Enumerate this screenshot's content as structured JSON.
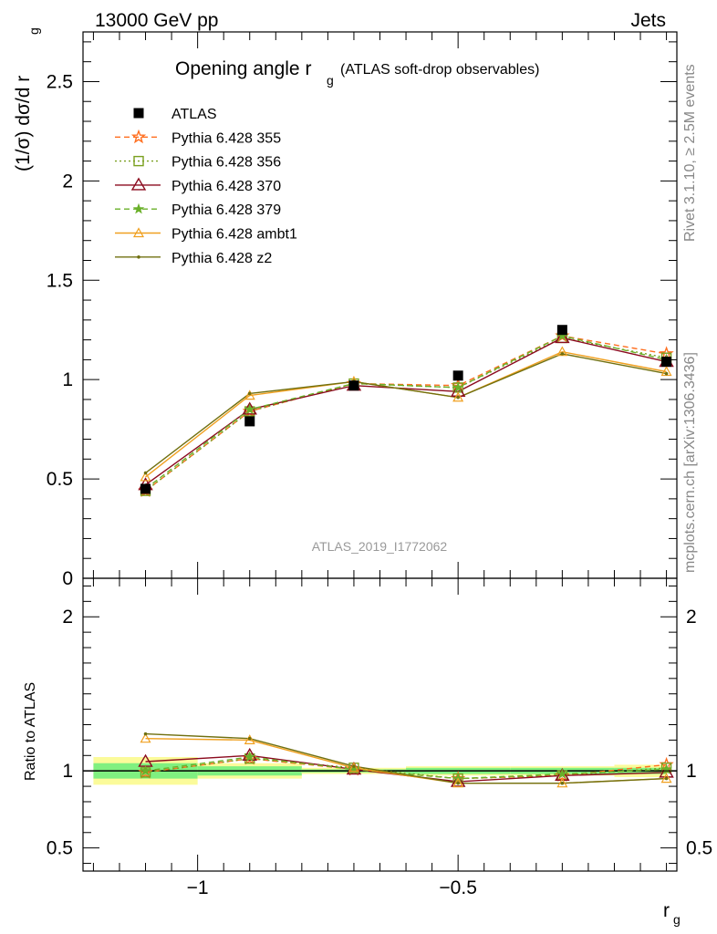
{
  "header": {
    "left": "13000 GeV pp",
    "right": "Jets"
  },
  "side_labels": {
    "rivet": "Rivet 3.1.10, ≥ 2.5M events",
    "mcplots": "mcplots.cern.ch [arXiv:1306.3436]"
  },
  "colors": {
    "ATLAS": "#000000",
    "p355": "#ff6f20",
    "p356": "#7aa020",
    "p370": "#8b0a1e",
    "p379": "#6ab02a",
    "pambt1": "#f0a020",
    "pz2": "#707010",
    "band_inner": "#80f080",
    "band_outer": "#fbfb9a"
  },
  "chart_data": {
    "type": "line",
    "title_main": "Opening angle r",
    "title_sub": "g",
    "title_note": "(ATLAS soft-drop observables)",
    "watermark": "ATLAS_2019_I1772062",
    "ylabel": "(1/σ) dσ/d r",
    "ylabel_sub": "g",
    "xlabel": "r",
    "xlabel_sub": "g",
    "ratio_ylabel": "Ratio to ATLAS",
    "xlim": [
      -1.22,
      -0.08
    ],
    "ylim": [
      0,
      2.75
    ],
    "ratio_ylim": [
      0.35,
      2.25
    ],
    "x_ticks": [
      {
        "value": -1,
        "label": "−1"
      },
      {
        "value": -0.5,
        "label": "−0.5"
      }
    ],
    "y_ticks": [
      {
        "value": 0,
        "label": "0"
      },
      {
        "value": 0.5,
        "label": "0.5"
      },
      {
        "value": 1,
        "label": "1"
      },
      {
        "value": 1.5,
        "label": "1.5"
      },
      {
        "value": 2,
        "label": "2"
      },
      {
        "value": 2.5,
        "label": "2.5"
      }
    ],
    "ratio_y_ticks": [
      {
        "value": 0.5,
        "label": "0.5"
      },
      {
        "value": 1,
        "label": "1"
      },
      {
        "value": 2,
        "label": "2"
      }
    ],
    "x": [
      -1.1,
      -0.9,
      -0.7,
      -0.5,
      -0.3,
      -0.1
    ],
    "data": {
      "name": "ATLAS",
      "values": [
        0.45,
        0.79,
        0.97,
        1.02,
        1.25,
        1.09
      ],
      "bands": [
        {
          "x0": -1.2,
          "x1": -1.0,
          "inner": [
            0.95,
            1.05
          ],
          "outer": [
            0.91,
            1.09
          ]
        },
        {
          "x0": -1.0,
          "x1": -0.8,
          "inner": [
            0.97,
            1.03
          ],
          "outer": [
            0.95,
            1.05
          ]
        },
        {
          "x0": -0.8,
          "x1": -0.6,
          "inner": [
            0.99,
            1.01
          ],
          "outer": [
            0.98,
            1.02
          ]
        },
        {
          "x0": -0.6,
          "x1": -0.4,
          "inner": [
            0.98,
            1.02
          ],
          "outer": [
            0.97,
            1.03
          ]
        },
        {
          "x0": -0.4,
          "x1": -0.2,
          "inner": [
            0.98,
            1.02
          ],
          "outer": [
            0.97,
            1.03
          ]
        },
        {
          "x0": -0.2,
          "x1": -0.1,
          "inner": [
            0.98,
            1.02
          ],
          "outer": [
            0.96,
            1.04
          ]
        }
      ]
    },
    "series": [
      {
        "name": "Pythia 6.428 355",
        "key": "p355",
        "dash": "6,4",
        "marker": "star-open",
        "values": [
          0.44,
          0.84,
          0.98,
          0.97,
          1.22,
          1.13
        ],
        "ratio": [
          0.99,
          1.08,
          1.01,
          0.95,
          0.97,
          1.04
        ]
      },
      {
        "name": "Pythia 6.428 356",
        "key": "p356",
        "dash": "2,3",
        "marker": "square-open",
        "values": [
          0.44,
          0.84,
          0.98,
          0.96,
          1.21,
          1.11
        ],
        "ratio": [
          0.99,
          1.08,
          1.02,
          0.95,
          0.97,
          1.02
        ]
      },
      {
        "name": "Pythia 6.428 370",
        "key": "p370",
        "dash": "",
        "marker": "triangle-open",
        "values": [
          0.47,
          0.85,
          0.97,
          0.94,
          1.21,
          1.09
        ],
        "ratio": [
          1.06,
          1.1,
          1.01,
          0.93,
          0.97,
          0.99
        ]
      },
      {
        "name": "Pythia 6.428 379",
        "key": "p379",
        "dash": "6,4",
        "marker": "star-filled",
        "values": [
          0.45,
          0.85,
          0.98,
          0.96,
          1.22,
          1.1
        ],
        "ratio": [
          1.0,
          1.09,
          1.01,
          0.95,
          0.98,
          1.01
        ]
      },
      {
        "name": "Pythia 6.428 ambt1",
        "key": "pambt1",
        "dash": "",
        "marker": "triangle-open-small",
        "values": [
          0.51,
          0.92,
          0.99,
          0.91,
          1.14,
          1.04
        ],
        "ratio": [
          1.21,
          1.2,
          1.02,
          0.92,
          0.92,
          0.95
        ]
      },
      {
        "name": "Pythia 6.428 z2",
        "key": "pz2",
        "dash": "",
        "marker": "dot",
        "values": [
          0.53,
          0.93,
          0.99,
          0.91,
          1.13,
          1.03
        ],
        "ratio": [
          1.24,
          1.21,
          1.03,
          0.92,
          0.92,
          0.95
        ]
      }
    ],
    "legend_placement": "top-left",
    "grid": false
  }
}
